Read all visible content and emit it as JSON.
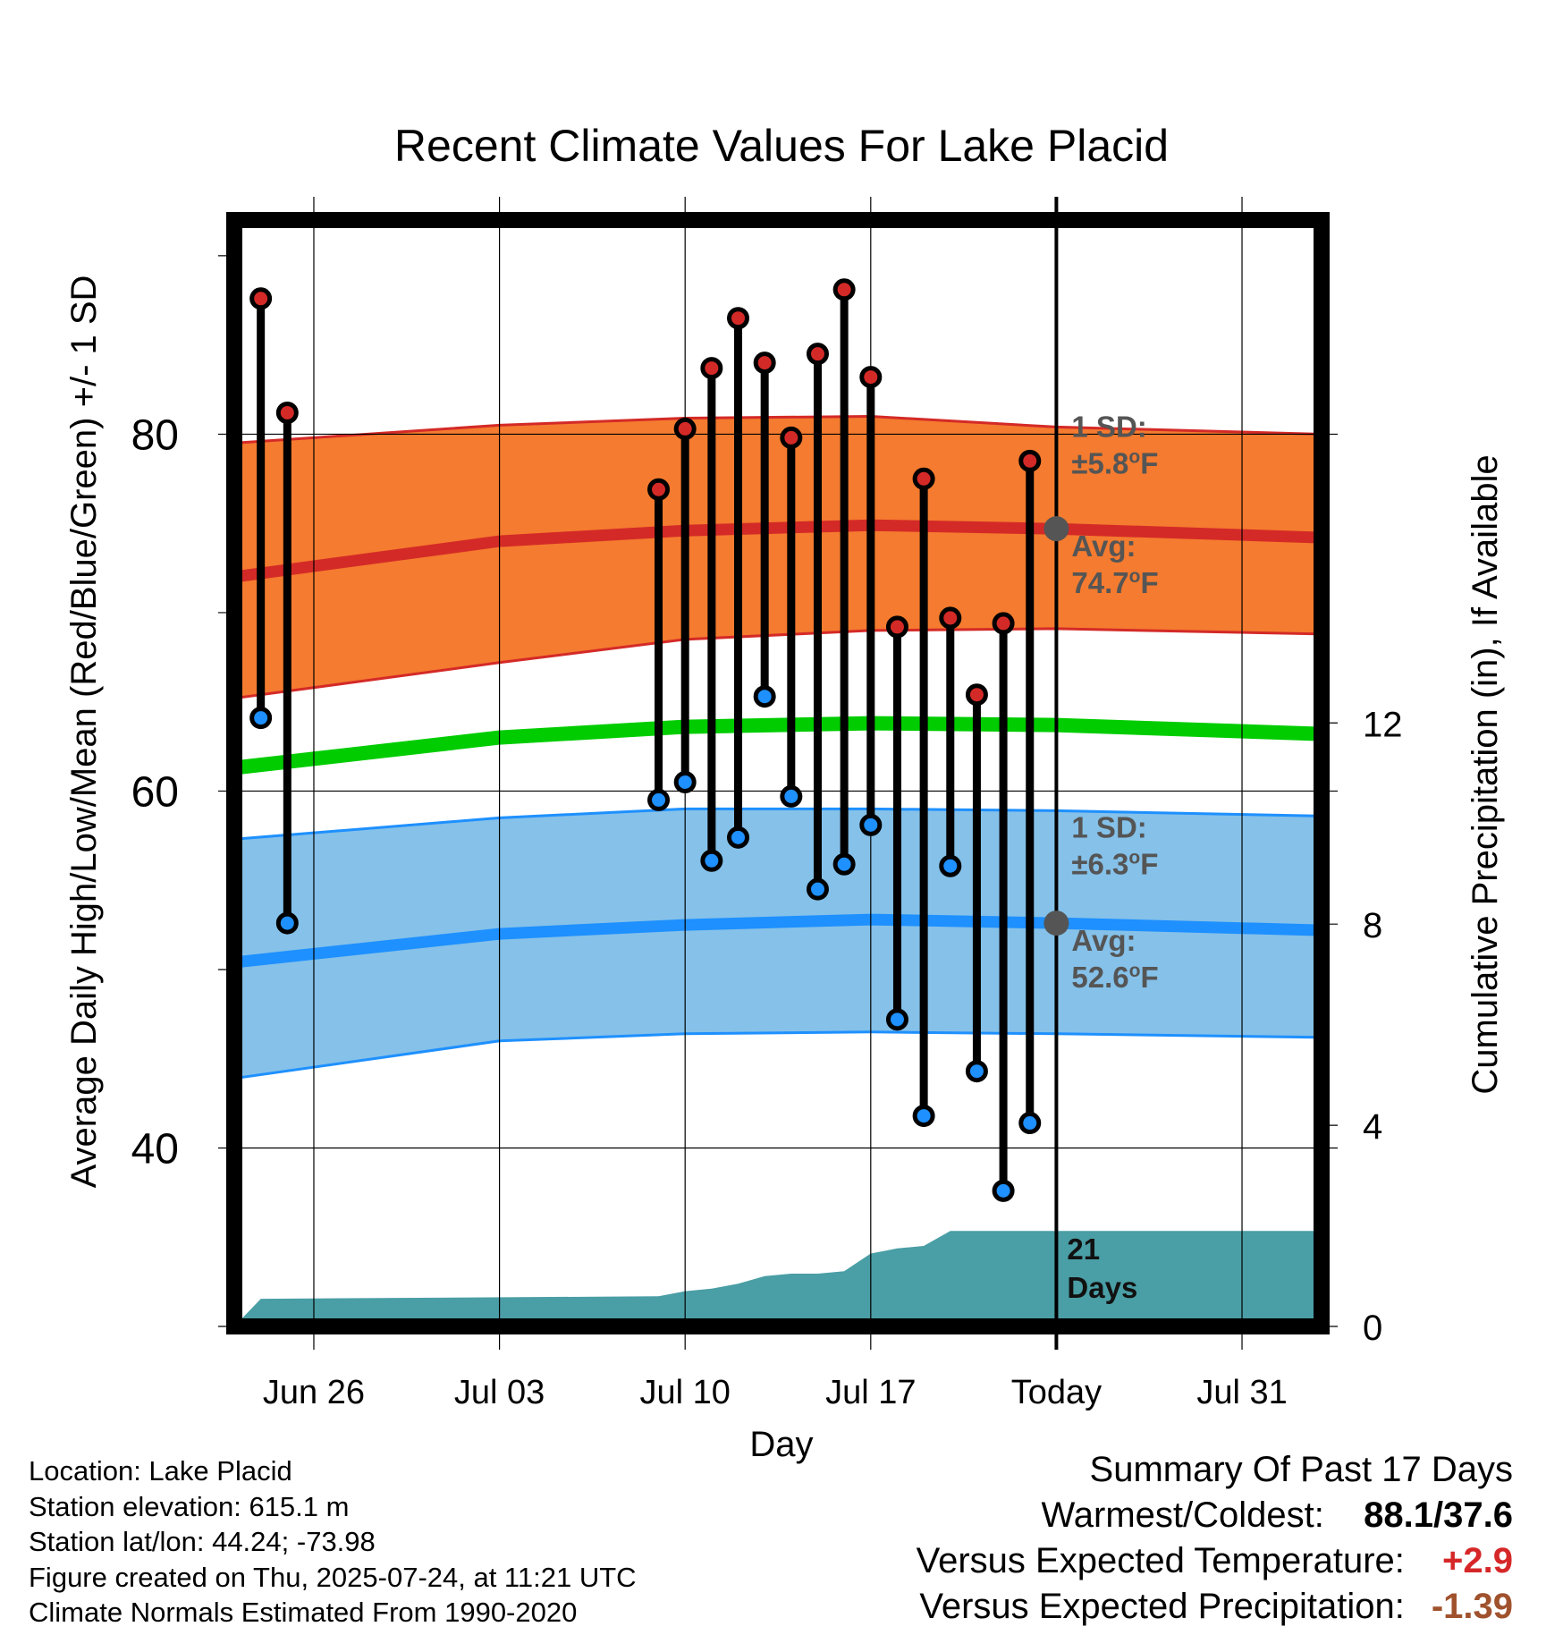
{
  "chart_data": {
    "type": "line",
    "title": "Recent Climate Values For Lake Placid",
    "xlabel": "Day",
    "ylabel": "Average Daily High/Low/Mean (Red/Blue/Green) +/- 1 SD",
    "y2label": "Cumulative Precipitation (in), If Available",
    "x_range": [
      "2025-06-23",
      "2025-08-03"
    ],
    "ylim": [
      30,
      92
    ],
    "y2lim": [
      0,
      22
    ],
    "x_tick_labels": [
      {
        "date": "2025-06-26",
        "label": "Jun 26"
      },
      {
        "date": "2025-07-03",
        "label": "Jul 03"
      },
      {
        "date": "2025-07-10",
        "label": "Jul 10"
      },
      {
        "date": "2025-07-17",
        "label": "Jul 17"
      },
      {
        "date": "2025-07-24",
        "label": "Today"
      },
      {
        "date": "2025-07-31",
        "label": "Jul 31"
      }
    ],
    "y_ticks": [
      40,
      60,
      80
    ],
    "y2_ticks": [
      0,
      4,
      8,
      12
    ],
    "grid": true,
    "today": "2025-07-24",
    "colors": {
      "high_band": "#f47b2f",
      "high_mean": "#d42a27",
      "low_band": "#85c1e9",
      "low_mean": "#1e90ff",
      "mean_line": "#00cc00",
      "precip": "#4a9ea5",
      "high_dot": "#d42a27",
      "low_dot": "#1e90ff",
      "annotation": "#555555"
    },
    "normal_high": {
      "x": [
        "2025-06-23",
        "2025-07-03",
        "2025-07-10",
        "2025-07-17",
        "2025-07-24",
        "2025-08-03"
      ],
      "mean": [
        72.0,
        74.0,
        74.6,
        74.9,
        74.7,
        74.2
      ],
      "upper": [
        79.5,
        80.5,
        80.9,
        81.0,
        80.4,
        80.0
      ],
      "lower": [
        65.2,
        67.2,
        68.5,
        69.0,
        69.1,
        68.8
      ]
    },
    "normal_low": {
      "x": [
        "2025-06-23",
        "2025-07-03",
        "2025-07-10",
        "2025-07-17",
        "2025-07-24",
        "2025-08-03"
      ],
      "mean": [
        50.4,
        52.0,
        52.5,
        52.8,
        52.6,
        52.2
      ],
      "upper": [
        57.3,
        58.5,
        59.0,
        59.0,
        58.9,
        58.6
      ],
      "lower": [
        43.9,
        46.0,
        46.4,
        46.5,
        46.4,
        46.2
      ]
    },
    "normal_mean": {
      "x": [
        "2025-06-23",
        "2025-07-03",
        "2025-07-10",
        "2025-07-17",
        "2025-07-24",
        "2025-08-03"
      ],
      "values": [
        61.3,
        63.0,
        63.6,
        63.8,
        63.7,
        63.2
      ]
    },
    "observed": {
      "dates": [
        "2025-06-24",
        "2025-06-25",
        "2025-07-09",
        "2025-07-10",
        "2025-07-11",
        "2025-07-12",
        "2025-07-13",
        "2025-07-14",
        "2025-07-15",
        "2025-07-16",
        "2025-07-17",
        "2025-07-18",
        "2025-07-19",
        "2025-07-20",
        "2025-07-21",
        "2025-07-22",
        "2025-07-23"
      ],
      "high": [
        87.6,
        81.2,
        76.9,
        80.3,
        83.7,
        86.5,
        84.0,
        79.8,
        84.5,
        88.1,
        83.2,
        69.2,
        77.5,
        69.7,
        65.4,
        69.4,
        78.5
      ],
      "low": [
        64.1,
        52.6,
        59.5,
        60.5,
        56.1,
        57.4,
        65.3,
        59.7,
        54.5,
        55.9,
        58.1,
        47.2,
        41.8,
        55.8,
        44.3,
        37.6,
        41.4
      ]
    },
    "cumulative_precip": {
      "x": [
        "2025-06-23",
        "2025-06-24",
        "2025-07-09",
        "2025-07-10",
        "2025-07-11",
        "2025-07-12",
        "2025-07-13",
        "2025-07-14",
        "2025-07-15",
        "2025-07-16",
        "2025-07-17",
        "2025-07-18",
        "2025-07-19",
        "2025-07-20",
        "2025-08-03"
      ],
      "values": [
        0.0,
        0.55,
        0.6,
        0.7,
        0.75,
        0.85,
        1.0,
        1.05,
        1.05,
        1.1,
        1.45,
        1.55,
        1.6,
        1.9,
        1.9
      ]
    },
    "annotations": {
      "high_sd_label": "1 SD:",
      "high_sd_value": "±5.8",
      "high_avg_label": "Avg:",
      "high_avg_value": "74.7",
      "low_sd_label": "1 SD:",
      "low_sd_value": "±6.3",
      "low_avg_label": "Avg:",
      "low_avg_value": "52.6",
      "degree_symbol": "o",
      "unit": "F",
      "days_number": "21",
      "days_word": "Days"
    }
  },
  "info": {
    "location": "Location: Lake Placid",
    "elevation": "Station elevation: 615.1 m",
    "latlon": "Station lat/lon: 44.24; -73.98",
    "created": "Figure created on Thu, 2025-07-24, at 11:21 UTC",
    "normals": "Climate Normals Estimated From 1990-2020"
  },
  "summary": {
    "title": "Summary Of Past 17 Days",
    "warmest_label": "Warmest/Coldest:",
    "warmest_value": "88.1/37.6",
    "temp_label": "Versus Expected Temperature:",
    "temp_value": "+2.9",
    "precip_label": "Versus Expected Precipitation:",
    "precip_value": "-1.39"
  }
}
